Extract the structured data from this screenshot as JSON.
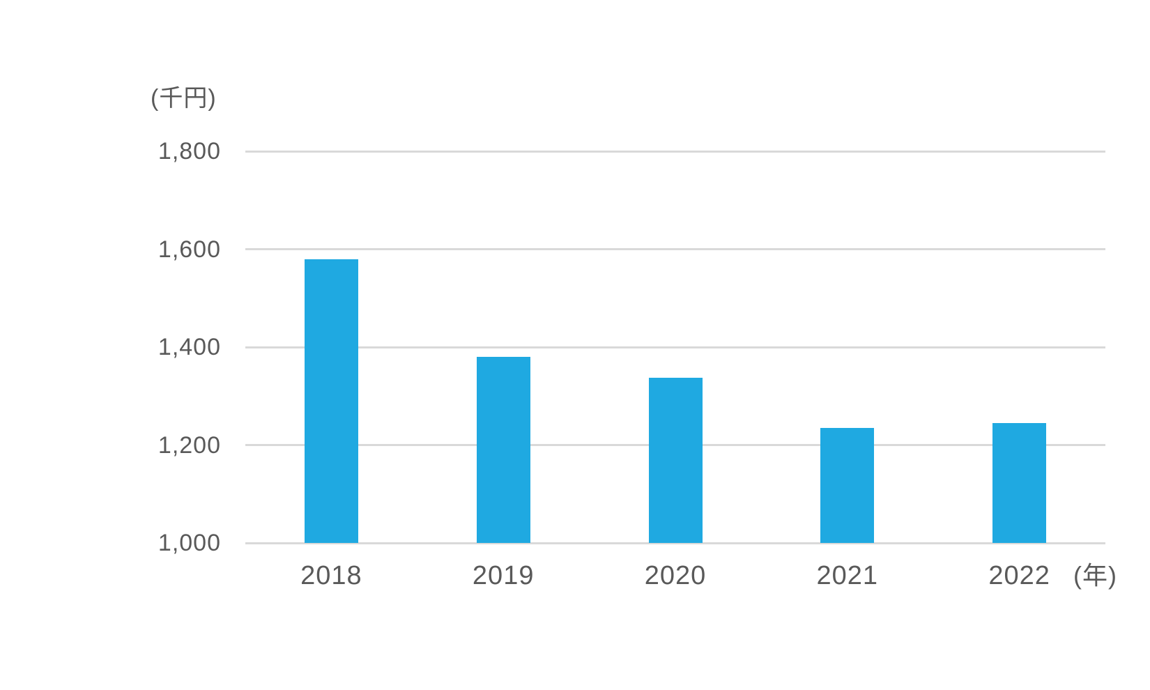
{
  "chart_data": {
    "type": "bar",
    "title": "",
    "unit_label": "(千円)",
    "x_axis_suffix": "(年)",
    "categories": [
      "2018",
      "2019",
      "2020",
      "2021",
      "2022"
    ],
    "values": [
      1580,
      1380,
      1337,
      1235,
      1245
    ],
    "xlabel": "",
    "ylabel": "(千円)",
    "ylim": [
      1000,
      1800
    ],
    "ytick_values": [
      1800,
      1600,
      1400,
      1200,
      1000
    ],
    "ytick_labels": [
      "1,800",
      "1,600",
      "1,400",
      "1,200",
      "1,000"
    ],
    "grid": "horizontal-gridlines",
    "legend": "none",
    "bar_color": "#1FA9E1",
    "grid_color": "#D9D9D9",
    "text_color": "#595959",
    "background_color": "#FFFFFF"
  }
}
